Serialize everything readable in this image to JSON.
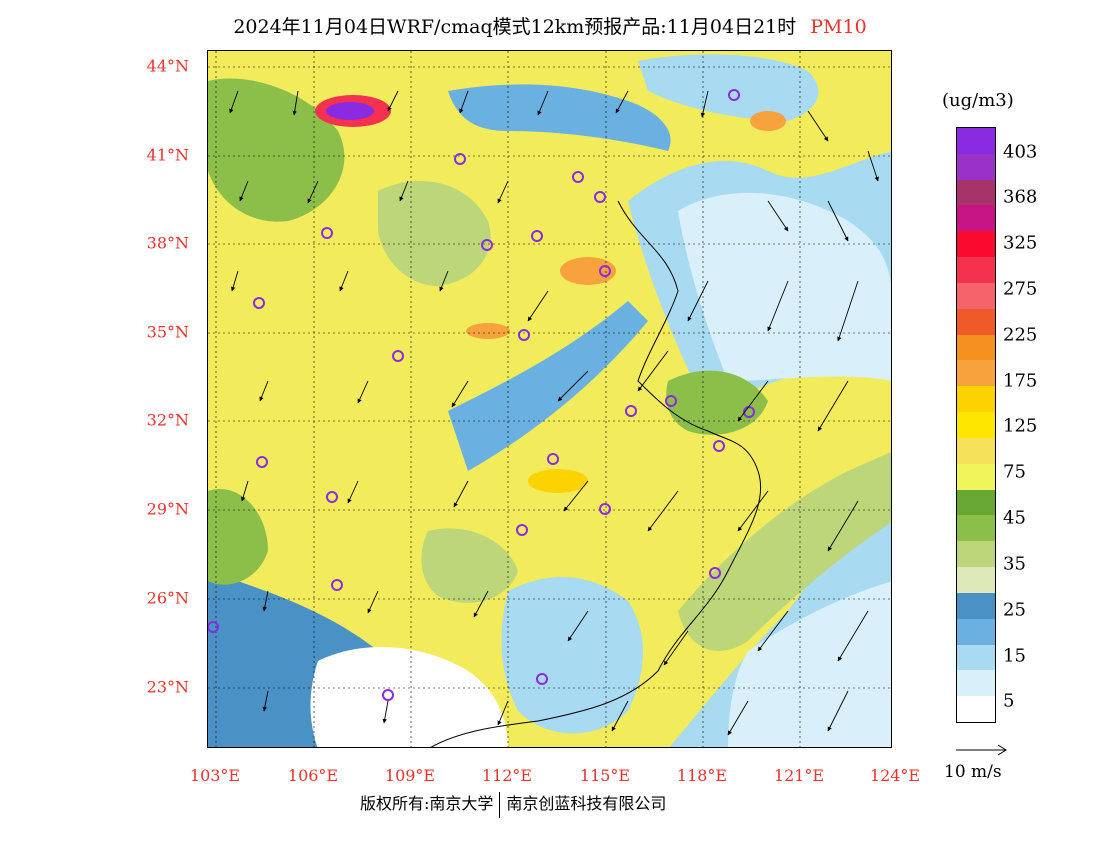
{
  "title": {
    "text": "2024年11月04日WRF/cmaq模式12km预报产品:11月04日21时",
    "pollutant": "PM10"
  },
  "map": {
    "lat_labels": [
      "44°N",
      "41°N",
      "38°N",
      "35°N",
      "32°N",
      "29°N",
      "26°N",
      "23°N"
    ],
    "lon_labels": [
      "103°E",
      "106°E",
      "109°E",
      "112°E",
      "115°E",
      "118°E",
      "121°E",
      "124°E"
    ],
    "colors": {
      "sea_low": "#d9f0fa",
      "sea_mid": "#a8daf2",
      "sea_deep": "#4a92c6",
      "land_yellow": "#f2ec5c",
      "land_green": "#8cbf4a",
      "hot_orange": "#f7a23c",
      "hot_purple": "#8a2be2",
      "station": "#8a2be2"
    }
  },
  "legend": {
    "units": "(ug/m3)",
    "labels": [
      "403",
      "368",
      "325",
      "275",
      "225",
      "175",
      "125",
      "75",
      "45",
      "35",
      "25",
      "15",
      "5"
    ],
    "colors": [
      "#ffffff",
      "#d9f0fa",
      "#a8daf2",
      "#6ab0e0",
      "#4a92c6",
      "#dfe8b8",
      "#bdd67a",
      "#8cbf4a",
      "#66a832",
      "#eff55a",
      "#f5e15a",
      "#ffe600",
      "#fcd200",
      "#f7a23c",
      "#f6911f",
      "#ef5a28",
      "#f4646a",
      "#f4324f",
      "#fa0a2d",
      "#c71585",
      "#a8326a",
      "#9b32c8",
      "#8a2be2"
    ]
  },
  "wind_key": {
    "label": "10 m/s"
  },
  "footer": {
    "left": "版权所有:南京大学",
    "right": "南京创蓝科技有限公司"
  }
}
